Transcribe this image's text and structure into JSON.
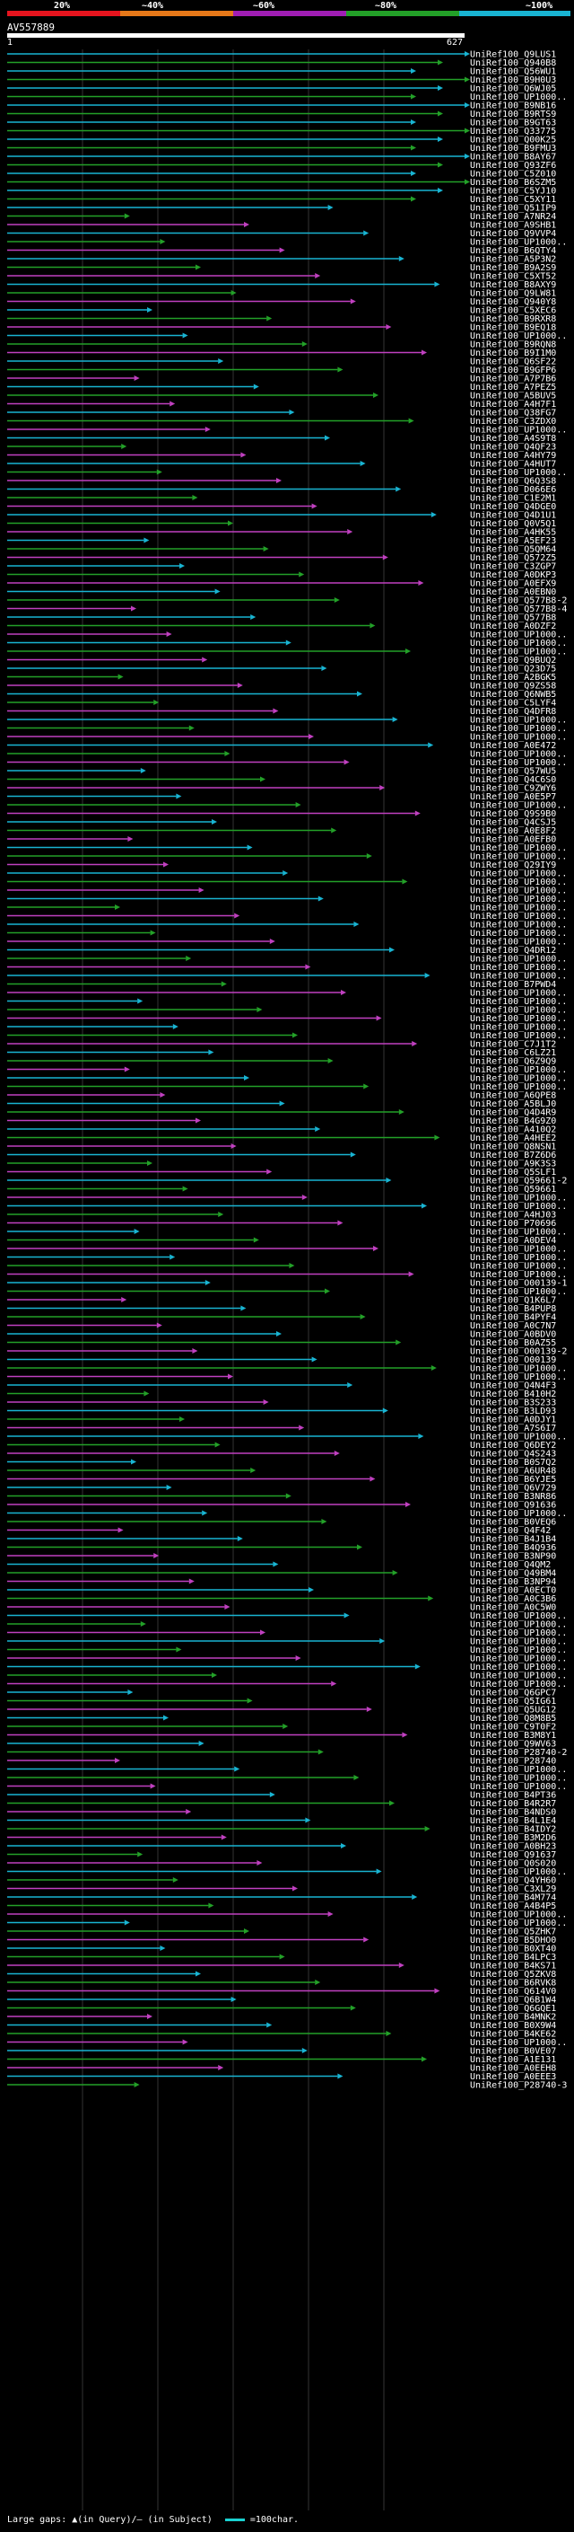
{
  "scale": {
    "labels": [
      "20%",
      "~40%",
      "~60%",
      "~80%",
      "~100%"
    ],
    "colors": [
      "#e6141e",
      "#e67819",
      "#a01eb4",
      "#23a028",
      "#19b4d2"
    ]
  },
  "query": {
    "id": "AV557889",
    "start": "1",
    "end": "627"
  },
  "hits": [
    "UniRef100_Q9LUS1",
    "UniRef100_Q940B8",
    "UniRef100_Q56WU1",
    "UniRef100_B9H0U3",
    "UniRef100_Q6WJ05",
    "UniRef100_UP1000..",
    "UniRef100_B9NB16",
    "UniRef100_B9RTS9",
    "UniRef100_B9GT63",
    "UniRef100_Q33775",
    "UniRef100_Q00K25",
    "UniRef100_B9FMU3",
    "UniRef100_B8AY67",
    "UniRef100_Q93ZF6",
    "UniRef100_C5Z010",
    "UniRef100_B6SZM5",
    "UniRef100_C5YJ10",
    "UniRef100_C5XY11",
    "UniRef100_Q51IP9",
    "UniRef100_A7NR24",
    "UniRef100_A9SHB1",
    "UniRef100_Q9VVP4",
    "UniRef100_UP1000..",
    "UniRef100_B6QTY4",
    "UniRef100_A5P3N2",
    "UniRef100_B9A2S9",
    "UniRef100_C5XT52",
    "UniRef100_B8AXY9",
    "UniRef100_Q9LW81",
    "UniRef100_Q940Y8",
    "UniRef100_C5XEC6",
    "UniRef100_B9RXR8",
    "UniRef100_B9EQ18",
    "UniRef100_UP1000..",
    "UniRef100_B9RQN8",
    "UniRef100_B9I1M0",
    "UniRef100_Q6SF22",
    "UniRef100_B9GFP6",
    "UniRef100_A7P7B6",
    "UniRef100_A7PEZ5",
    "UniRef100_A5BUV5",
    "UniRef100_A4H7F1",
    "UniRef100_Q38FG7",
    "UniRef100_C3ZDX0",
    "UniRef100_UP1000..",
    "UniRef100_A4S9T8",
    "UniRef100_Q4QF23",
    "UniRef100_A4HY79",
    "UniRef100_A4HUT7",
    "UniRef100_UP1000..",
    "UniRef100_Q6Q3S8",
    "UniRef100_D066E6",
    "UniRef100_C1E2M1",
    "UniRef100_Q4DGE0",
    "UniRef100_Q4D1U1",
    "UniRef100_Q0V5Q1",
    "UniRef100_A4HK55",
    "UniRef100_A5EF23",
    "UniRef100_Q5QM64",
    "UniRef100_Q572Z5",
    "UniRef100_C3ZGP7",
    "UniRef100_A0DKP3",
    "UniRef100_A0EFX9",
    "UniRef100_A0EBN0",
    "UniRef100_Q577B8-2",
    "UniRef100_Q577B8-4",
    "UniRef100_Q577B8",
    "UniRef100_A0DZF2",
    "UniRef100_UP1000..",
    "UniRef100_UP1000..",
    "UniRef100_UP1000..",
    "UniRef100_Q9BUQ2",
    "UniRef100_Q23D75",
    "UniRef100_A2BGK5",
    "UniRef100_Q9ZS58",
    "UniRef100_Q6NWB5",
    "UniRef100_C5LYF4",
    "UniRef100_Q4DFR8",
    "UniRef100_UP1000..",
    "UniRef100_UP1000..",
    "UniRef100_UP1000..",
    "UniRef100_A0E472",
    "UniRef100_UP1000..",
    "UniRef100_UP1000..",
    "UniRef100_Q57WU5",
    "UniRef100_Q4C6S0",
    "UniRef100_C9ZWY6",
    "UniRef100_A0E5P7",
    "UniRef100_UP1000..",
    "UniRef100_Q9S9B0",
    "UniRef100_Q4CSJ5",
    "UniRef100_A0E8F2",
    "UniRef100_A0EFB0",
    "UniRef100_UP1000..",
    "UniRef100_UP1000..",
    "UniRef100_Q29IY9",
    "UniRef100_UP1000..",
    "UniRef100_UP1000..",
    "UniRef100_UP1000..",
    "UniRef100_UP1000..",
    "UniRef100_UP1000..",
    "UniRef100_UP1000..",
    "UniRef100_UP1000..",
    "UniRef100_UP1000..",
    "UniRef100_UP1000..",
    "UniRef100_Q4DR12",
    "UniRef100_UP1000..",
    "UniRef100_UP1000..",
    "UniRef100_UP1000..",
    "UniRef100_B7PWD4",
    "UniRef100_UP1000..",
    "UniRef100_UP1000..",
    "UniRef100_UP1000..",
    "UniRef100_UP1000..",
    "UniRef100_UP1000..",
    "UniRef100_UP1000..",
    "UniRef100_C7J1T2",
    "UniRef100_C6LZ21",
    "UniRef100_Q6Z9Q9",
    "UniRef100_UP1000..",
    "UniRef100_UP1000..",
    "UniRef100_UP1000..",
    "UniRef100_A6QPE8",
    "UniRef100_A5BLJ0",
    "UniRef100_Q4D4R9",
    "UniRef100_B4G9Z0",
    "UniRef100_A410Q2",
    "UniRef100_A4HEE2",
    "UniRef100_Q8NSN1",
    "UniRef100_B7Z6D6",
    "UniRef100_A9K3S3",
    "UniRef100_Q5SLF1",
    "UniRef100_Q59661-2",
    "UniRef100_Q59661",
    "UniRef100_UP1000..",
    "UniRef100_UP1000..",
    "UniRef100_A4HJ03",
    "UniRef100_P70696",
    "UniRef100_UP1000..",
    "UniRef100_A0DEV4",
    "UniRef100_UP1000..",
    "UniRef100_UP1000..",
    "UniRef100_UP1000..",
    "UniRef100_UP1000..",
    "UniRef100_O00139-1",
    "UniRef100_UP1000..",
    "UniRef100_Q1K6L7",
    "UniRef100_B4PUP8",
    "UniRef100_B4PYF4",
    "UniRef100_A0C7N7",
    "UniRef100_A0BDV0",
    "UniRef100_B0AZ55",
    "UniRef100_O00139-2",
    "UniRef100_O00139",
    "UniRef100_UP1000..",
    "UniRef100_UP1000..",
    "UniRef100_Q4N4F3",
    "UniRef100_B410H2",
    "UniRef100_B3S233",
    "UniRef100_B3LD93",
    "UniRef100_A0DJY1",
    "UniRef100_A7S6I7",
    "UniRef100_UP1000..",
    "UniRef100_Q6DEY2",
    "UniRef100_Q4S243",
    "UniRef100_B0S7Q2",
    "UniRef100_A6UR48",
    "UniRef100_B6YJE5",
    "UniRef100_Q6V729",
    "UniRef100_B3NR86",
    "UniRef100_Q91636",
    "UniRef100_UP1000..",
    "UniRef100_B0VEQ6",
    "UniRef100_Q4F42",
    "UniRef100_B4J1B4",
    "UniRef100_B4Q936",
    "UniRef100_B3NP90",
    "UniRef100_Q4QM2",
    "UniRef100_Q49BM4",
    "UniRef100_B3NP94",
    "UniRef100_A0ECT0",
    "UniRef100_A0C3B6",
    "UniRef100_A0C5W0",
    "UniRef100_UP1000..",
    "UniRef100_UP1000..",
    "UniRef100_UP1000..",
    "UniRef100_UP1000..",
    "UniRef100_UP1000..",
    "UniRef100_UP1000..",
    "UniRef100_UP1000..",
    "UniRef100_UP1000..",
    "UniRef100_UP1000..",
    "UniRef100_Q6GPC7",
    "UniRef100_Q5IG61",
    "UniRef100_Q5UG12",
    "UniRef100_Q8M8B5",
    "UniRef100_C9T0F2",
    "UniRef100_B3M8Y1",
    "UniRef100_Q9WV63",
    "UniRef100_P28740-2",
    "UniRef100_P28740",
    "UniRef100_UP1000..",
    "UniRef100_UP1000..",
    "UniRef100_UP1000..",
    "UniRef100_B4PT36",
    "UniRef100_B4R2R7",
    "UniRef100_B4NDS0",
    "UniRef100_B4L1E4",
    "UniRef100_B4IDY2",
    "UniRef100_B3M2D6",
    "UniRef100_A0BH23",
    "UniRef100_Q91637",
    "UniRef100_Q0S020",
    "UniRef100_UP1000..",
    "UniRef100_Q4YH60",
    "UniRef100_C3XL29",
    "UniRef100_B4M774",
    "UniRef100_A4B4P5",
    "UniRef100_UP1000..",
    "UniRef100_UP1000..",
    "UniRef100_Q5ZHK7",
    "UniRef100_B5DHO0",
    "UniRef100_B0XT40",
    "UniRef100_B4LPC3",
    "UniRef100_B4KS71",
    "UniRef100_Q5ZKV8",
    "UniRef100_B6RVK8",
    "UniRef100_Q614V0",
    "UniRef100_Q6B1W4",
    "UniRef100_Q6GQE1",
    "UniRef100_B4MNK2",
    "UniRef100_B0X9W4",
    "UniRef100_B4KE62",
    "UniRef100_UP1000..",
    "UniRef100_B0VE07",
    "UniRef100_A1E131",
    "UniRef100_A0EEH8",
    "UniRef100_A0EEE3",
    "UniRef100_P28740-3"
  ],
  "legend": {
    "text": "Large gaps: ▲(in Query)/— (in Subject)",
    "scale_text": "=100char."
  }
}
